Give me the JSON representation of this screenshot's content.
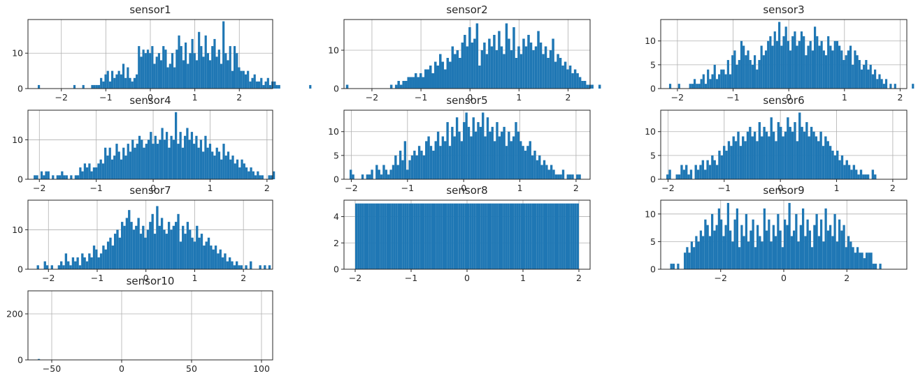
{
  "colors": {
    "bar": "#1f77b4",
    "grid": "#b0b0b0",
    "axes": "#262626"
  },
  "chart_data": [
    {
      "type": "histogram",
      "title": "sensor1",
      "xlim": [
        -2.75,
        2.75
      ],
      "ylim": [
        0,
        19.5
      ],
      "xticks": [
        -2,
        -1,
        0,
        1,
        2
      ],
      "xtick_labels": [
        "−2",
        "−1",
        "0",
        "1",
        "2"
      ],
      "yticks": [
        0,
        10
      ],
      "ytick_labels": [
        "0",
        "10"
      ],
      "grid": true,
      "bin_start": -2.53,
      "bin_width": 0.05,
      "counts": [
        1,
        0,
        0,
        0,
        0,
        0,
        0,
        0,
        0,
        0,
        0,
        0,
        0,
        0,
        0,
        0,
        1,
        0,
        0,
        0,
        1,
        0,
        0,
        0,
        1,
        1,
        1,
        1,
        3,
        2,
        4,
        5,
        2,
        5,
        3,
        4,
        5,
        4,
        7,
        3,
        6,
        3,
        2,
        3,
        4,
        12,
        9,
        11,
        10,
        11,
        10,
        12,
        7,
        9,
        10,
        8,
        12,
        11,
        6,
        7,
        10,
        6,
        11,
        15,
        12,
        8,
        13,
        7,
        10,
        14,
        10,
        8,
        16,
        12,
        9,
        15,
        10,
        8,
        12,
        14,
        9,
        11,
        7,
        19,
        10,
        8,
        12,
        5,
        12,
        10,
        6,
        5,
        5,
        4,
        5,
        2,
        3,
        4,
        2,
        2,
        3,
        1,
        2,
        3,
        1,
        2,
        2,
        1,
        1,
        0,
        0,
        0,
        0,
        0,
        0,
        0,
        0,
        0,
        0,
        0,
        0,
        0,
        1
      ]
    },
    {
      "type": "histogram",
      "title": "sensor2",
      "xlim": [
        -2.57,
        2.45
      ],
      "ylim": [
        0,
        18
      ],
      "xticks": [
        -2,
        -1,
        0,
        1,
        2
      ],
      "xtick_labels": [
        "−2",
        "−1",
        "0",
        "1",
        "2"
      ],
      "yticks": [
        0,
        10
      ],
      "ytick_labels": [
        "0",
        "10"
      ],
      "grid": true,
      "bin_start": -2.53,
      "bin_width": 0.05,
      "counts": [
        1,
        0,
        0,
        0,
        0,
        0,
        0,
        0,
        0,
        0,
        0,
        0,
        0,
        0,
        0,
        0,
        0,
        0,
        1,
        0,
        1,
        2,
        1,
        2,
        2,
        3,
        3,
        3,
        4,
        3,
        4,
        3,
        5,
        5,
        6,
        4,
        7,
        6,
        9,
        7,
        5,
        8,
        7,
        11,
        9,
        10,
        8,
        12,
        14,
        11,
        16,
        12,
        13,
        17,
        6,
        10,
        12,
        9,
        13,
        11,
        14,
        10,
        15,
        11,
        9,
        17,
        13,
        10,
        16,
        8,
        11,
        9,
        13,
        11,
        14,
        12,
        10,
        11,
        15,
        12,
        9,
        11,
        8,
        10,
        13,
        7,
        9,
        8,
        6,
        7,
        5,
        6,
        4,
        5,
        4,
        3,
        2,
        2,
        1,
        1,
        1,
        0,
        0,
        1,
        0,
        0,
        0
      ]
    },
    {
      "type": "histogram",
      "title": "sensor3",
      "xlim": [
        -2.3,
        2.12
      ],
      "ylim": [
        0,
        14.5
      ],
      "xticks": [
        -2,
        -1,
        0,
        1,
        2
      ],
      "xtick_labels": [
        "−2",
        "−1",
        "0",
        "1",
        "2"
      ],
      "yticks": [
        0,
        5,
        10
      ],
      "ytick_labels": [
        "0",
        "5",
        "10"
      ],
      "grid": true,
      "bin_start": -2.15,
      "bin_width": 0.04,
      "counts": [
        1,
        0,
        0,
        0,
        1,
        0,
        0,
        0,
        0,
        1,
        1,
        2,
        1,
        1,
        2,
        3,
        1,
        4,
        2,
        3,
        5,
        2,
        3,
        4,
        4,
        3,
        6,
        3,
        7,
        8,
        5,
        6,
        10,
        9,
        7,
        8,
        6,
        5,
        7,
        4,
        6,
        9,
        7,
        8,
        10,
        11,
        9,
        12,
        10,
        14,
        9,
        11,
        13,
        10,
        8,
        11,
        12,
        9,
        10,
        12,
        11,
        7,
        9,
        10,
        8,
        13,
        11,
        9,
        10,
        8,
        7,
        11,
        9,
        8,
        10,
        10,
        9,
        8,
        6,
        7,
        8,
        9,
        5,
        8,
        7,
        6,
        4,
        5,
        6,
        4,
        5,
        3,
        4,
        2,
        3,
        2,
        1,
        2,
        0,
        1,
        0,
        1,
        0,
        0,
        0,
        0,
        0,
        0,
        0,
        1
      ]
    },
    {
      "type": "histogram",
      "title": "sensor4",
      "xlim": [
        -2.2,
        2.1
      ],
      "ylim": [
        0,
        17.5
      ],
      "xticks": [
        -2,
        -1,
        0,
        1,
        2
      ],
      "xtick_labels": [
        "−2",
        "−1",
        "0",
        "1",
        "2"
      ],
      "yticks": [
        0,
        10
      ],
      "ytick_labels": [
        "0",
        "10"
      ],
      "grid": true,
      "bin_start": -2.1,
      "bin_width": 0.04,
      "counts": [
        1,
        1,
        0,
        2,
        1,
        2,
        2,
        0,
        1,
        0,
        1,
        1,
        2,
        1,
        1,
        0,
        1,
        0,
        1,
        1,
        3,
        2,
        4,
        3,
        4,
        2,
        3,
        3,
        4,
        5,
        4,
        8,
        6,
        8,
        5,
        6,
        9,
        7,
        5,
        8,
        6,
        9,
        7,
        10,
        8,
        9,
        11,
        10,
        8,
        9,
        10,
        12,
        9,
        11,
        9,
        10,
        13,
        10,
        12,
        8,
        11,
        10,
        17,
        9,
        12,
        8,
        11,
        13,
        10,
        12,
        9,
        11,
        8,
        10,
        7,
        11,
        8,
        9,
        7,
        6,
        8,
        7,
        5,
        9,
        6,
        7,
        5,
        6,
        4,
        5,
        3,
        5,
        4,
        3,
        2,
        3,
        2,
        1,
        2,
        1,
        1,
        0,
        0,
        1,
        1,
        2
      ]
    },
    {
      "type": "histogram",
      "title": "sensor5",
      "xlim": [
        -2.13,
        2.25
      ],
      "ylim": [
        0,
        14.5
      ],
      "xticks": [
        -2,
        -1,
        0,
        1,
        2
      ],
      "xtick_labels": [
        "−2",
        "−1",
        "0",
        "1",
        "2"
      ],
      "yticks": [
        0,
        5,
        10
      ],
      "ytick_labels": [
        "0",
        "5",
        "10"
      ],
      "grid": true,
      "bin_start": -2.03,
      "bin_width": 0.042,
      "counts": [
        2,
        1,
        0,
        0,
        0,
        1,
        0,
        1,
        1,
        2,
        0,
        3,
        2,
        1,
        3,
        2,
        1,
        2,
        3,
        5,
        3,
        6,
        4,
        8,
        2,
        4,
        5,
        6,
        5,
        7,
        6,
        5,
        8,
        9,
        7,
        6,
        8,
        10,
        7,
        9,
        8,
        12,
        7,
        11,
        9,
        13,
        10,
        8,
        12,
        14,
        11,
        9,
        13,
        10,
        12,
        11,
        14,
        9,
        13,
        10,
        11,
        8,
        12,
        9,
        10,
        11,
        7,
        10,
        8,
        9,
        12,
        10,
        8,
        7,
        6,
        7,
        8,
        5,
        6,
        4,
        5,
        3,
        4,
        3,
        2,
        3,
        2,
        1,
        1,
        1,
        2,
        0,
        1,
        1,
        1,
        0,
        1,
        1
      ]
    },
    {
      "type": "histogram",
      "title": "sensor6",
      "xlim": [
        -2.13,
        2.25
      ],
      "ylim": [
        0,
        14.5
      ],
      "xticks": [
        -2,
        -1,
        0,
        1,
        2
      ],
      "xtick_labels": [
        "−2",
        "−1",
        "0",
        "1",
        "2"
      ],
      "yticks": [
        0,
        5,
        10
      ],
      "ytick_labels": [
        "0",
        "5",
        "10"
      ],
      "grid": true,
      "bin_start": -2.03,
      "bin_width": 0.042,
      "counts": [
        1,
        2,
        0,
        0,
        1,
        1,
        3,
        2,
        3,
        1,
        2,
        0,
        3,
        2,
        3,
        4,
        2,
        4,
        3,
        5,
        4,
        3,
        6,
        5,
        7,
        6,
        8,
        7,
        9,
        8,
        10,
        7,
        9,
        8,
        10,
        11,
        9,
        10,
        8,
        12,
        9,
        11,
        10,
        9,
        13,
        10,
        8,
        12,
        11,
        9,
        10,
        13,
        11,
        10,
        12,
        8,
        14,
        11,
        10,
        12,
        9,
        11,
        10,
        9,
        8,
        10,
        7,
        9,
        8,
        7,
        6,
        5,
        6,
        4,
        5,
        3,
        4,
        3,
        2,
        3,
        2,
        1,
        2,
        1,
        1,
        1,
        0,
        2,
        1
      ]
    },
    {
      "type": "histogram",
      "title": "sensor7",
      "xlim": [
        -2.42,
        2.6
      ],
      "ylim": [
        0,
        17.5
      ],
      "xticks": [
        -2,
        -1,
        0,
        1,
        2
      ],
      "xtick_labels": [
        "−2",
        "−1",
        "0",
        "1",
        "2"
      ],
      "yticks": [
        0,
        10
      ],
      "ytick_labels": [
        "0",
        "10"
      ],
      "grid": true,
      "bin_start": -2.24,
      "bin_width": 0.048,
      "counts": [
        1,
        0,
        0,
        2,
        1,
        0,
        1,
        0,
        0,
        1,
        2,
        1,
        4,
        2,
        1,
        3,
        2,
        3,
        1,
        4,
        3,
        2,
        4,
        3,
        6,
        5,
        3,
        4,
        6,
        5,
        7,
        8,
        6,
        9,
        10,
        8,
        12,
        11,
        13,
        15,
        12,
        10,
        11,
        13,
        9,
        11,
        8,
        10,
        12,
        14,
        9,
        16,
        11,
        13,
        10,
        9,
        12,
        10,
        11,
        12,
        14,
        7,
        11,
        9,
        12,
        10,
        8,
        7,
        11,
        8,
        9,
        6,
        7,
        8,
        6,
        5,
        6,
        4,
        5,
        3,
        4,
        2,
        3,
        2,
        1,
        2,
        1,
        1,
        0,
        1,
        0,
        2,
        0,
        0,
        0,
        1,
        0,
        1,
        0,
        1
      ]
    },
    {
      "type": "histogram",
      "title": "sensor8",
      "xlim": [
        -2.2,
        2.2
      ],
      "ylim": [
        0,
        5.25
      ],
      "xticks": [
        -2,
        -1,
        0,
        1,
        2
      ],
      "xtick_labels": [
        "−2",
        "−1",
        "0",
        "1",
        "2"
      ],
      "yticks": [
        0,
        2,
        4
      ],
      "ytick_labels": [
        "0",
        "2",
        "4"
      ],
      "grid": true,
      "bin_start": -2.0,
      "bin_width": 0.04,
      "counts": [
        5,
        5,
        5,
        5,
        5,
        5,
        5,
        5,
        5,
        5,
        5,
        5,
        5,
        5,
        5,
        5,
        5,
        5,
        5,
        5,
        5,
        5,
        5,
        5,
        5,
        5,
        5,
        5,
        5,
        5,
        5,
        5,
        5,
        5,
        5,
        5,
        5,
        5,
        5,
        5,
        5,
        5,
        5,
        5,
        5,
        5,
        5,
        5,
        5,
        5,
        5,
        5,
        5,
        5,
        5,
        5,
        5,
        5,
        5,
        5,
        5,
        5,
        5,
        5,
        5,
        5,
        5,
        5,
        5,
        5,
        5,
        5,
        5,
        5,
        5,
        5,
        5,
        5,
        5,
        5,
        5,
        5,
        5,
        5,
        5,
        5,
        5,
        5,
        5,
        5,
        5,
        5,
        5,
        5,
        5,
        5,
        5,
        5,
        5,
        5
      ]
    },
    {
      "type": "histogram",
      "title": "sensor9",
      "xlim": [
        -3.9,
        3.9
      ],
      "ylim": [
        0,
        12.5
      ],
      "xticks": [
        -2,
        0,
        2
      ],
      "xtick_labels": [
        "−2",
        "0",
        "2"
      ],
      "yticks": [
        0,
        5,
        10
      ],
      "ytick_labels": [
        "0",
        "5",
        "10"
      ],
      "grid": true,
      "bin_start": -3.6,
      "bin_width": 0.072,
      "counts": [
        1,
        1,
        0,
        1,
        0,
        0,
        3,
        4,
        3,
        5,
        4,
        6,
        5,
        7,
        6,
        9,
        8,
        6,
        10,
        7,
        8,
        11,
        9,
        6,
        8,
        12,
        7,
        5,
        9,
        11,
        4,
        8,
        6,
        10,
        5,
        7,
        9,
        4,
        8,
        6,
        5,
        11,
        7,
        9,
        5,
        8,
        6,
        10,
        7,
        4,
        9,
        8,
        12,
        6,
        7,
        10,
        5,
        8,
        11,
        6,
        9,
        7,
        4,
        8,
        10,
        6,
        9,
        5,
        11,
        7,
        8,
        6,
        10,
        5,
        9,
        7,
        8,
        4,
        6,
        5,
        4,
        3,
        4,
        3,
        3,
        2,
        3,
        3,
        3,
        1,
        1,
        0,
        1
      ]
    },
    {
      "type": "histogram",
      "title": "sensor10",
      "xlim": [
        -67,
        108
      ],
      "ylim": [
        0,
        300
      ],
      "xticks": [
        -50,
        0,
        50,
        100
      ],
      "xtick_labels": [
        "−50",
        "0",
        "50",
        "100"
      ],
      "yticks": [
        0,
        200
      ],
      "ytick_labels": [
        "0",
        "200"
      ],
      "grid": true,
      "bin_start": -60,
      "bin_width": 1.6,
      "counts": [
        4,
        0,
        0,
        0,
        0,
        0,
        0,
        0,
        0,
        0,
        0,
        0,
        0,
        0,
        0,
        0,
        0,
        0,
        0,
        0,
        0,
        0,
        0,
        0,
        0,
        0,
        0,
        0,
        0,
        0,
        0,
        0,
        0,
        0,
        0,
        0,
        0,
        0,
        0,
        0,
        0,
        0,
        0,
        0,
        0,
        0,
        0,
        0,
        0,
        0,
        0,
        0,
        0,
        0,
        0,
        0,
        0,
        0,
        0,
        0,
        0,
        0,
        0,
        0,
        0,
        0,
        0,
        0,
        0,
        0,
        0,
        0,
        0,
        0,
        0,
        0,
        0,
        0,
        0,
        0,
        0,
        0,
        0,
        0,
        0,
        0,
        0,
        0,
        0,
        0,
        0,
        0,
        0,
        0,
        0,
        0,
        0,
        0,
        0,
        0,
        1
      ]
    }
  ]
}
